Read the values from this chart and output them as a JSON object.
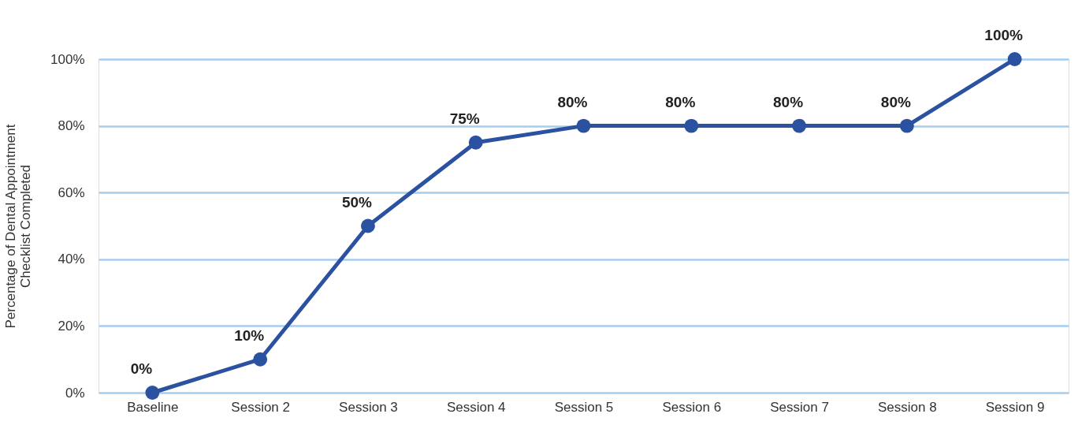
{
  "chart_data": {
    "type": "line",
    "ylabel": "Percentage of Dental Appointment\nChecklist Completed",
    "categories": [
      "Baseline",
      "Session 2",
      "Session 3",
      "Session 4",
      "Session 5",
      "Session 6",
      "Session 7",
      "Session 8",
      "Session 9"
    ],
    "series": [
      {
        "color": "#2b51a1",
        "values": [
          0,
          10,
          50,
          75,
          80,
          80,
          80,
          80,
          100
        ],
        "value_labels": [
          "0%",
          "10%",
          "50%",
          "75%",
          "80%",
          "80%",
          "80%",
          "80%",
          "100%"
        ]
      }
    ],
    "ylim": [
      0,
      100
    ],
    "yticks": [
      {
        "value": 0,
        "label": "0%"
      },
      {
        "value": 20,
        "label": "20%"
      },
      {
        "value": 40,
        "label": "40%"
      },
      {
        "value": 60,
        "label": "60%"
      },
      {
        "value": 80,
        "label": "80%"
      },
      {
        "value": 100,
        "label": "100%"
      }
    ],
    "grid": "y",
    "marker": "circle",
    "line_style": "solid"
  }
}
